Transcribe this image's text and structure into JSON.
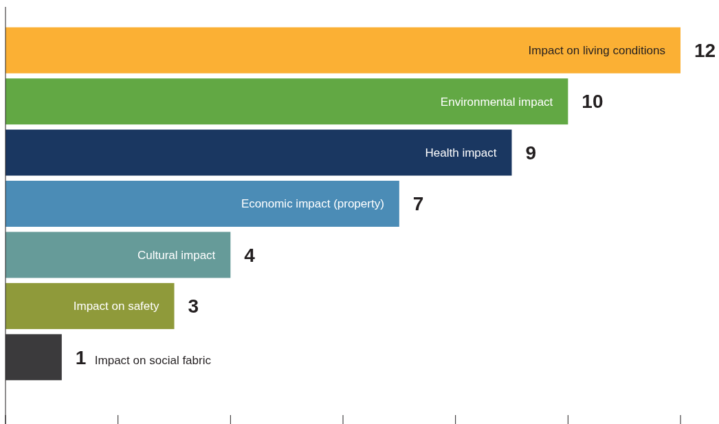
{
  "chart_data": {
    "type": "bar",
    "orientation": "horizontal",
    "categories": [
      "Impact on living conditions",
      "Environmental impact",
      "Health impact",
      "Economic impact (property)",
      "Cultural impact",
      "Impact on safety",
      "Impact on social fabric"
    ],
    "values": [
      12,
      10,
      9,
      7,
      4,
      3,
      1
    ],
    "colors": [
      "#fbb034",
      "#62a844",
      "#1a3761",
      "#4b8cb6",
      "#669b99",
      "#8f9a3a",
      "#3b3a3c"
    ],
    "xlim": [
      0,
      12
    ],
    "xticks": [
      {
        "value": 0,
        "label": null
      },
      {
        "value": 2,
        "label": null
      },
      {
        "value": 4,
        "label": null
      },
      {
        "value": 6,
        "label": null
      },
      {
        "value": 8,
        "label": null
      },
      {
        "value": 10,
        "label": null
      },
      {
        "value": 12,
        "label": null
      }
    ],
    "data_labels": true,
    "grid": false
  }
}
